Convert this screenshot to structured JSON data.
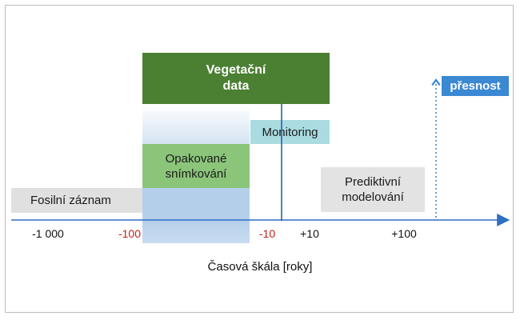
{
  "boxes": {
    "vegetation": [
      "Vegetační",
      "data"
    ],
    "repeated_imaging": [
      "Opakované",
      "snímkování"
    ],
    "monitoring": "Monitoring",
    "fossil": "Fosilní záznam",
    "predictive": [
      "Prediktivní",
      "modelování"
    ],
    "precision": "přesnost"
  },
  "axis": {
    "ticks": [
      {
        "text": "-1 000",
        "color": "#111111"
      },
      {
        "text": "-100",
        "color": "#c0201c"
      },
      {
        "text": "-10",
        "color": "#c0201c"
      },
      {
        "text": "+10",
        "color": "#111111"
      },
      {
        "text": "+100",
        "color": "#111111"
      }
    ],
    "label": "Časová škála [roky]"
  },
  "colors": {
    "axis": "#2f6fc4",
    "vegetation": "#4b7f32",
    "repeated_imaging": "#8bc57a",
    "monitoring": "#a9dbe0",
    "precision": "#3b88d3",
    "gray_box": "#e0e0e0"
  }
}
